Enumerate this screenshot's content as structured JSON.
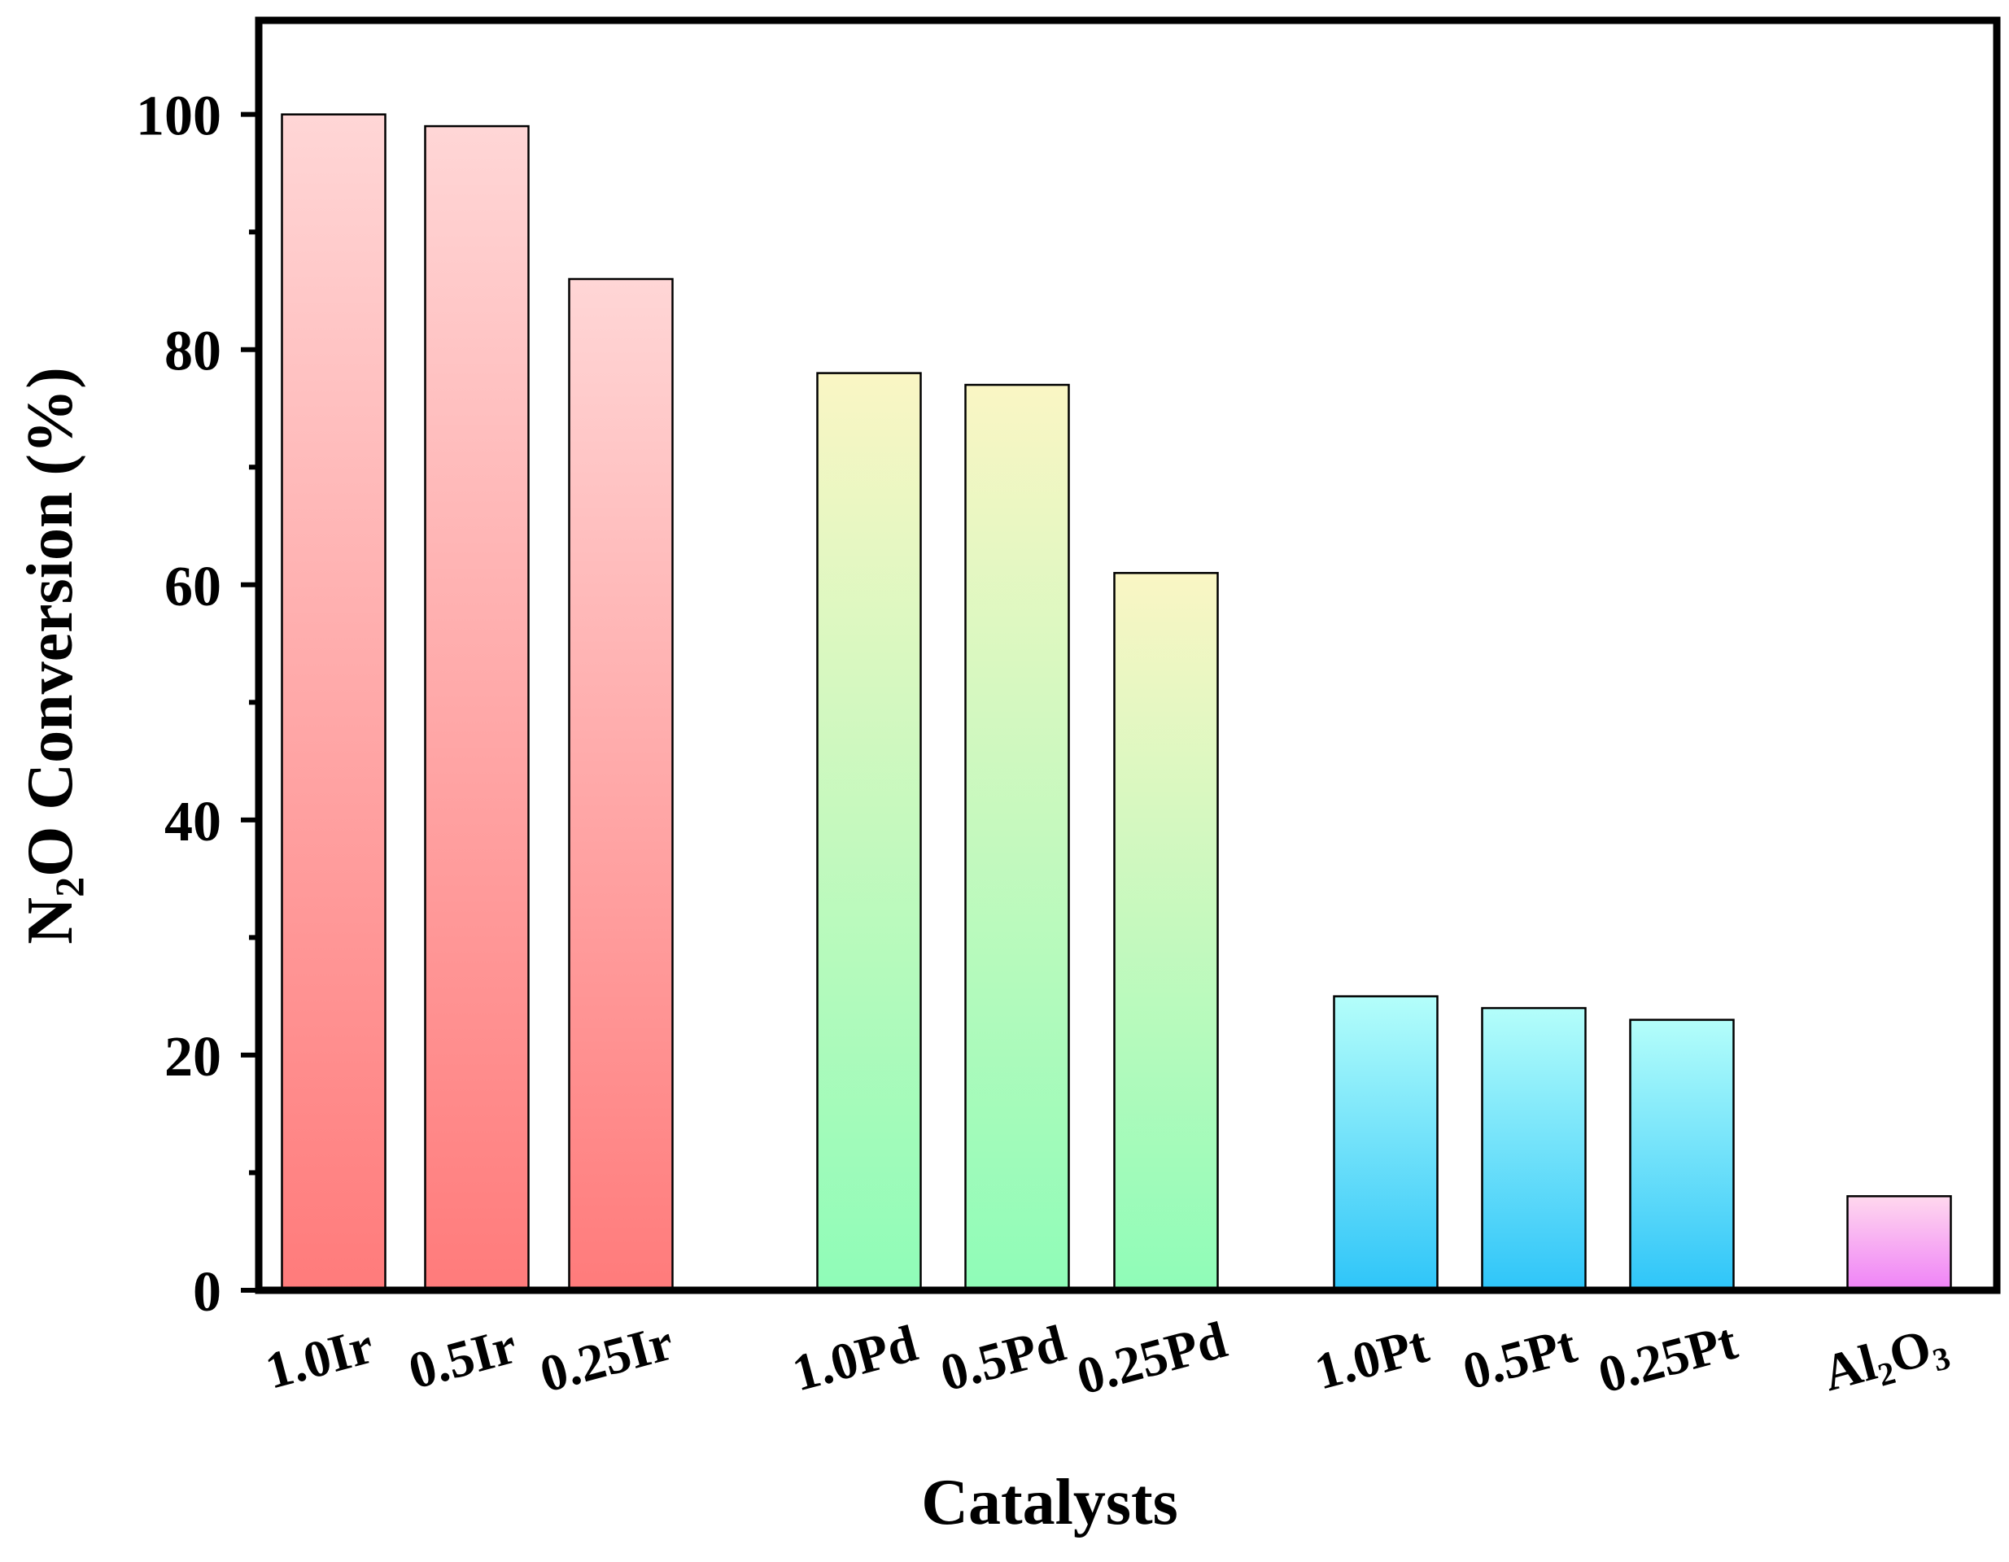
{
  "chart_data": {
    "type": "bar",
    "categories": [
      "1.0Ir",
      "0.5Ir",
      "0.25Ir",
      "1.0Pd",
      "0.5Pd",
      "0.25Pd",
      "1.0Pt",
      "0.5Pt",
      "0.25Pt",
      "Al2O3"
    ],
    "category_labels": [
      {
        "text": "1.0Ir"
      },
      {
        "text": "0.5Ir"
      },
      {
        "text": "0.25Ir"
      },
      {
        "text": "1.0Pd"
      },
      {
        "text": "0.5Pd"
      },
      {
        "text": "0.25Pd"
      },
      {
        "text": "1.0Pt"
      },
      {
        "text": "0.5Pt"
      },
      {
        "text": "0.25Pt"
      },
      {
        "parts": [
          {
            "t": "Al"
          },
          {
            "t": "2",
            "sub": true
          },
          {
            "t": "O"
          },
          {
            "t": "3",
            "sub": true
          }
        ]
      }
    ],
    "values": [
      100,
      99,
      86,
      78,
      77,
      61,
      25,
      24,
      23,
      8
    ],
    "groups": [
      {
        "name": "Ir",
        "members": [
          0,
          1,
          2
        ],
        "color_top": "#FFD6D6",
        "color_bottom": "#FF7B7B"
      },
      {
        "name": "Pd",
        "members": [
          3,
          4,
          5
        ],
        "color_top": "#FAF6C4",
        "color_bottom": "#8FFCB8"
      },
      {
        "name": "Pt",
        "members": [
          6,
          7,
          8
        ],
        "color_top": "#B4FEFA",
        "color_bottom": "#2EC5F9"
      },
      {
        "name": "Al2O3",
        "members": [
          9
        ],
        "color_top": "#FFD8EE",
        "color_bottom": "#EF82F7"
      }
    ],
    "xlabel": "Catalysts",
    "ylabel_parts": [
      {
        "t": "N"
      },
      {
        "t": "2",
        "sub": true
      },
      {
        "t": "O Conversion (%)"
      }
    ],
    "ylim": [
      0,
      108
    ],
    "yticks": [
      0,
      20,
      40,
      60,
      80,
      100
    ],
    "yminor_step": 10,
    "grid": false,
    "legend": "none"
  }
}
